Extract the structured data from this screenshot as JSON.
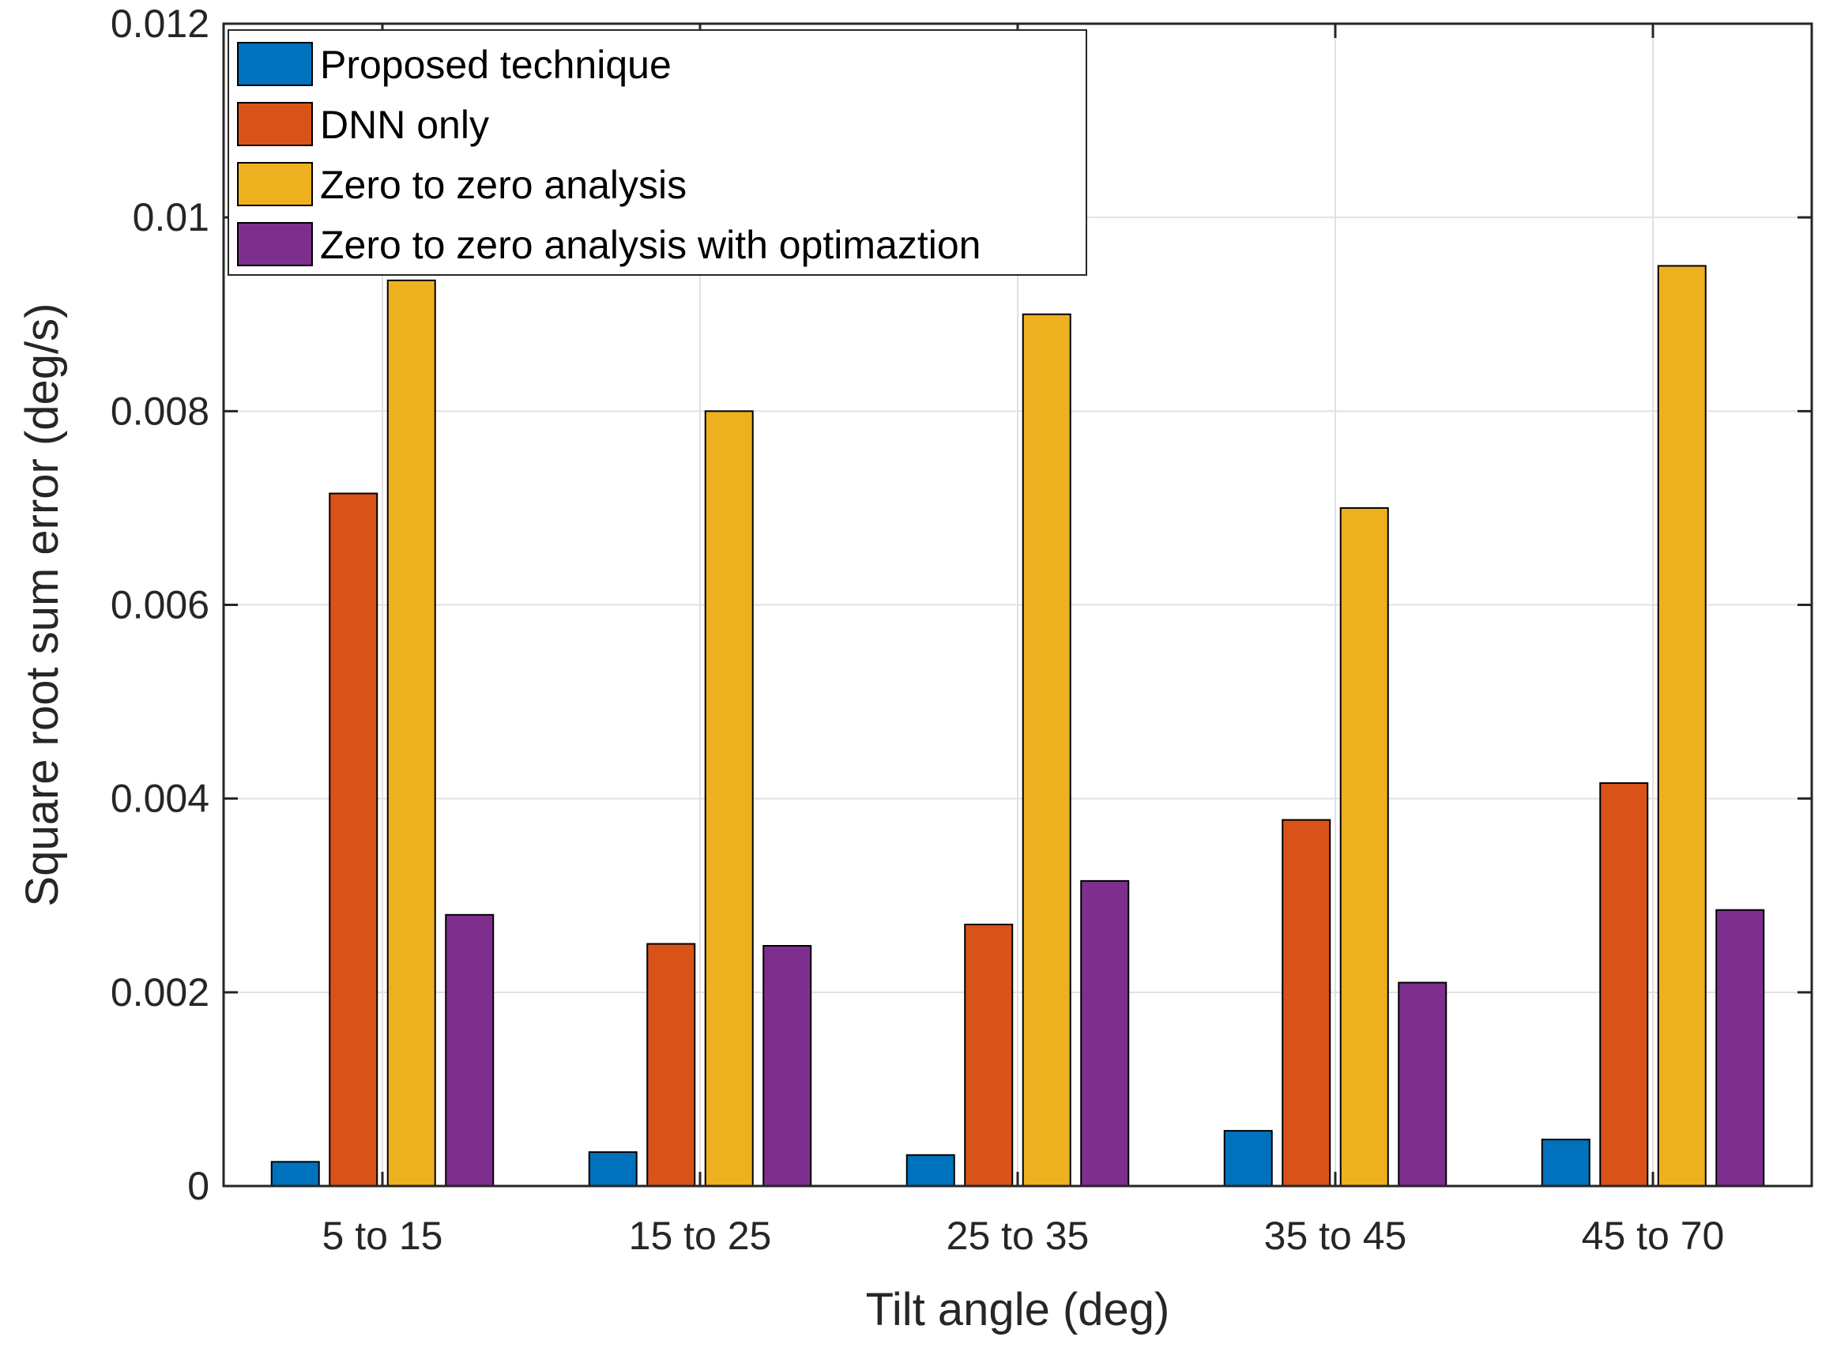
{
  "chart_data": {
    "type": "bar",
    "title": "",
    "xlabel": "Tilt angle (deg)",
    "ylabel": "Square root sum error (deg/s)",
    "ylim": [
      0,
      0.012
    ],
    "yticks": [
      0,
      0.002,
      0.004,
      0.006,
      0.008,
      0.01,
      0.012
    ],
    "ytick_labels": [
      "0",
      "0.002",
      "0.004",
      "0.006",
      "0.008",
      "0.01",
      "0.012"
    ],
    "grid": true,
    "legend_position": "top-left",
    "categories": [
      "5 to 15",
      "15 to 25",
      "25 to 35",
      "35 to 45",
      "45 to 70"
    ],
    "series": [
      {
        "name": "Proposed technique",
        "color": "#0072bd",
        "values": [
          0.00025,
          0.00035,
          0.00032,
          0.00057,
          0.00048
        ]
      },
      {
        "name": "DNN only",
        "color": "#d95319",
        "values": [
          0.00715,
          0.0025,
          0.0027,
          0.00378,
          0.00416
        ]
      },
      {
        "name": "Zero to zero analysis",
        "color": "#edb120",
        "values": [
          0.00935,
          0.008,
          0.009,
          0.007,
          0.0095
        ]
      },
      {
        "name": "Zero to zero analysis with optimaztion",
        "color": "#7e2f8e",
        "values": [
          0.0028,
          0.00248,
          0.00315,
          0.0021,
          0.00285
        ]
      }
    ]
  }
}
